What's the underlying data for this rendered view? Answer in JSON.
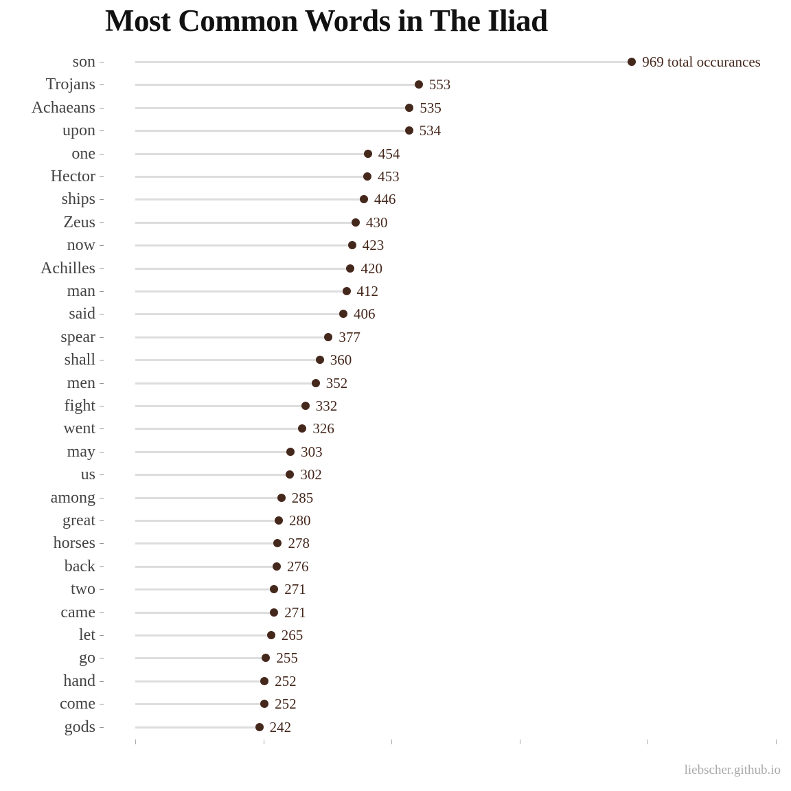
{
  "title": "Most Common Words in The Iliad",
  "credit": "liebscher.github.io",
  "colors": {
    "point": "#45281c",
    "stem": "#dddddd",
    "title": "#111111",
    "label": "#444444"
  },
  "chart_data": {
    "type": "lollipop",
    "title": "Most Common Words in The Iliad",
    "xlabel": "",
    "ylabel": "",
    "xlim": [
      0,
      1250
    ],
    "x_ticks": [
      0,
      250,
      500,
      750,
      1000,
      1250
    ],
    "x_tick_labels_visible": false,
    "grid": false,
    "legend": null,
    "annotation": "969 total occurances",
    "categories": [
      "son",
      "Trojans",
      "Achaeans",
      "upon",
      "one",
      "Hector",
      "ships",
      "Zeus",
      "now",
      "Achilles",
      "man",
      "said",
      "spear",
      "shall",
      "men",
      "fight",
      "went",
      "may",
      "us",
      "among",
      "great",
      "horses",
      "back",
      "two",
      "came",
      "let",
      "go",
      "hand",
      "come",
      "gods"
    ],
    "values": [
      969,
      553,
      535,
      534,
      454,
      453,
      446,
      430,
      423,
      420,
      412,
      406,
      377,
      360,
      352,
      332,
      326,
      303,
      302,
      285,
      280,
      278,
      276,
      271,
      271,
      265,
      255,
      252,
      252,
      242
    ],
    "value_labels": [
      "969 total occurances",
      "553",
      "535",
      "534",
      "454",
      "453",
      "446",
      "430",
      "423",
      "420",
      "412",
      "406",
      "377",
      "360",
      "352",
      "332",
      "326",
      "303",
      "302",
      "285",
      "280",
      "278",
      "276",
      "271",
      "271",
      "265",
      "255",
      "252",
      "252",
      "242"
    ]
  }
}
